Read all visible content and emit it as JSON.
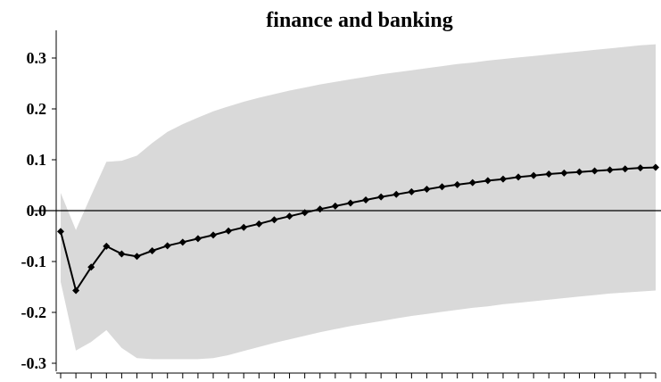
{
  "chart_data": {
    "type": "line",
    "title": "finance and banking",
    "xlabel": "",
    "ylabel": "",
    "ylim": [
      -0.32,
      0.35
    ],
    "yticks": [
      "0.3",
      "0.2",
      "0.1",
      "0.0",
      "-0.1",
      "-0.2",
      "-0.3"
    ],
    "ytick_values": [
      0.3,
      0.2,
      0.1,
      0.0,
      -0.1,
      -0.2,
      -0.3
    ],
    "zero_line": true,
    "grid": false,
    "x": [
      1,
      2,
      3,
      4,
      5,
      6,
      7,
      8,
      9,
      10,
      11,
      12,
      13,
      14,
      15,
      16,
      17,
      18,
      19,
      20,
      21,
      22,
      23,
      24,
      25,
      26,
      27,
      28,
      29,
      30,
      31,
      32,
      33,
      34,
      35,
      36,
      37,
      38,
      39,
      40
    ],
    "series": [
      {
        "values": [
          -0.041,
          -0.157,
          -0.111,
          -0.07,
          -0.085,
          -0.09,
          -0.079,
          -0.069,
          -0.062,
          -0.055,
          -0.048,
          -0.04,
          -0.033,
          -0.026,
          -0.018,
          -0.011,
          -0.004,
          0.003,
          0.009,
          0.015,
          0.021,
          0.027,
          0.032,
          0.037,
          0.042,
          0.047,
          0.051,
          0.055,
          0.059,
          0.062,
          0.066,
          0.069,
          0.072,
          0.074,
          0.076,
          0.078,
          0.08,
          0.082,
          0.084,
          0.085
        ],
        "marker": "diamond",
        "color": "#000000"
      }
    ],
    "band": {
      "upper": [
        0.035,
        -0.038,
        0.03,
        0.096,
        0.098,
        0.108,
        0.133,
        0.155,
        0.17,
        0.183,
        0.195,
        0.205,
        0.214,
        0.222,
        0.229,
        0.236,
        0.242,
        0.248,
        0.253,
        0.258,
        0.263,
        0.268,
        0.272,
        0.276,
        0.28,
        0.284,
        0.288,
        0.291,
        0.295,
        0.298,
        0.301,
        0.304,
        0.307,
        0.31,
        0.313,
        0.316,
        0.319,
        0.322,
        0.325,
        0.327
      ],
      "lower": [
        -0.14,
        -0.275,
        -0.258,
        -0.235,
        -0.27,
        -0.29,
        -0.292,
        -0.292,
        -0.292,
        -0.292,
        -0.29,
        -0.284,
        -0.276,
        -0.268,
        -0.26,
        -0.253,
        -0.246,
        -0.239,
        -0.233,
        -0.227,
        -0.222,
        -0.217,
        -0.212,
        -0.207,
        -0.203,
        -0.199,
        -0.195,
        -0.191,
        -0.188,
        -0.184,
        -0.181,
        -0.178,
        -0.175,
        -0.172,
        -0.169,
        -0.166,
        -0.163,
        -0.161,
        -0.159,
        -0.157
      ],
      "color": "#d9d9d9"
    }
  }
}
